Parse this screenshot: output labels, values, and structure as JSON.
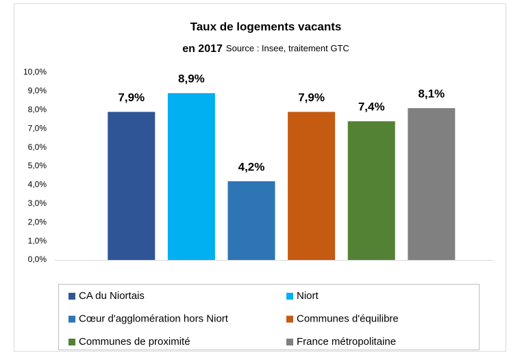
{
  "chart_data": {
    "type": "bar",
    "title": "Taux de logements vacants",
    "subtitle": "en 2017",
    "source": "Source : Insee, traitement GTC",
    "categories": [
      "CA du Niortais",
      "Niort",
      "Cœur d'agglomération hors Niort",
      "Communes d'équilibre",
      "Communes de proximité",
      "France métropolitaine"
    ],
    "values": [
      7.9,
      8.9,
      4.2,
      7.9,
      7.4,
      8.1
    ],
    "value_labels": [
      "7,9%",
      "8,9%",
      "4,2%",
      "7,9%",
      "7,4%",
      "8,1%"
    ],
    "colors": [
      "#2f5597",
      "#00b0f0",
      "#2e75b6",
      "#c55a11",
      "#548235",
      "#808080"
    ],
    "ylim": [
      0,
      10
    ],
    "yticks": [
      {
        "value": 0,
        "label": "0,0%"
      },
      {
        "value": 1,
        "label": "1,0%"
      },
      {
        "value": 2,
        "label": "2,0%"
      },
      {
        "value": 3,
        "label": "3,0%"
      },
      {
        "value": 4,
        "label": "4,0%"
      },
      {
        "value": 5,
        "label": "5,0%"
      },
      {
        "value": 6,
        "label": "6,0%"
      },
      {
        "value": 7,
        "label": "7,0%"
      },
      {
        "value": 8,
        "label": "8,0%"
      },
      {
        "value": 9,
        "label": "9,0%"
      },
      {
        "value": 10,
        "label": "10,0%"
      }
    ],
    "grid": false,
    "legend": "bottom"
  }
}
